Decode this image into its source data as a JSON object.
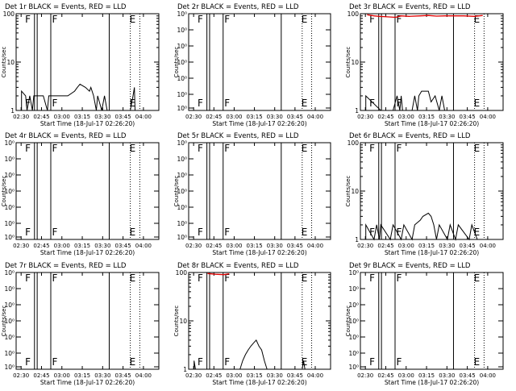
{
  "chart_data": [
    {
      "type": "line",
      "title": "Det 1r BLACK = Events, RED = LLD",
      "xlabel": "Start Time (18-Jul-17 02:26:20)",
      "ylabel": "Counts/sec",
      "y_scale": "log",
      "ylim": [
        1,
        100
      ],
      "y_ticks": [
        "1",
        "10",
        "100"
      ],
      "x_ticks": [
        "02:30",
        "02:45",
        "03:00",
        "03:15",
        "03:30",
        "03:45",
        "04:00"
      ],
      "x_range_minutes_after_0226": [
        0,
        105
      ],
      "markers": [
        {
          "type": "solid",
          "t": 13.5
        },
        {
          "type": "solid",
          "t": 15.5
        },
        {
          "type": "solid",
          "t": 25.5
        },
        {
          "type": "solid",
          "t": 68.5
        },
        {
          "type": "dotted",
          "t": 84
        },
        {
          "type": "dotted",
          "t": 91
        }
      ],
      "flags": [
        {
          "label": "F",
          "t": 6
        },
        {
          "label": "F",
          "t": 25.8
        },
        {
          "label": "E",
          "t": 84
        }
      ],
      "series": [
        {
          "color": "black",
          "points": [
            [
              4,
              1
            ],
            [
              4,
              2.5
            ],
            [
              7,
              2
            ],
            [
              8,
              1
            ],
            [
              10,
              2
            ],
            [
              12,
              1
            ],
            [
              13,
              2
            ],
            [
              15,
              2
            ],
            [
              20,
              2
            ],
            [
              23,
              1
            ],
            [
              24,
              2
            ],
            [
              30,
              2
            ],
            [
              38,
              2
            ],
            [
              43,
              2.5
            ],
            [
              45,
              3
            ],
            [
              47,
              3.5
            ],
            [
              51,
              3
            ],
            [
              54,
              2.5
            ],
            [
              55,
              3
            ],
            [
              57,
              2
            ],
            [
              59,
              1
            ],
            [
              60,
              2
            ],
            [
              63,
              1
            ],
            [
              65,
              2
            ],
            [
              67,
              1
            ],
            [
              84,
              1
            ],
            [
              86,
              2
            ],
            [
              87,
              3
            ],
            [
              87.5,
              1
            ]
          ]
        }
      ]
    },
    {
      "type": "line",
      "title": "Det 2r BLACK = Events, RED = LLD",
      "xlabel": "Start Time (18-Jul-17 02:26:20)",
      "ylabel": "Counts/sec",
      "y_scale": "log",
      "ylim": [
        0.9,
        1.00000001
      ],
      "y_ticks": [
        "10⁰",
        "10⁰",
        "10⁰",
        "10⁰",
        "10⁰",
        "10⁰",
        "10⁰"
      ],
      "x_ticks": [
        "02:30",
        "02:45",
        "03:00",
        "03:15",
        "03:30",
        "03:45",
        "04:00"
      ],
      "x_range_minutes_after_0226": [
        0,
        105
      ],
      "markers": [
        {
          "type": "solid",
          "t": 13.5
        },
        {
          "type": "solid",
          "t": 15.5
        },
        {
          "type": "solid",
          "t": 25.5
        },
        {
          "type": "solid",
          "t": 68.5
        },
        {
          "type": "dotted",
          "t": 84
        },
        {
          "type": "dotted",
          "t": 91
        }
      ],
      "flags": [
        {
          "label": "F",
          "t": 6
        },
        {
          "label": "F",
          "t": 25.8
        },
        {
          "label": "E",
          "t": 84
        }
      ],
      "series": []
    },
    {
      "type": "line",
      "title": "Det 3r BLACK = Events, RED = LLD",
      "xlabel": "Start Time (18-Jul-17 02:26:20)",
      "ylabel": "Counts/sec",
      "y_scale": "log",
      "ylim": [
        1,
        100
      ],
      "y_ticks": [
        "1",
        "10",
        "100"
      ],
      "x_ticks": [
        "02:30",
        "02:45",
        "03:00",
        "03:15",
        "03:30",
        "03:45",
        "04:00"
      ],
      "x_range_minutes_after_0226": [
        0,
        105
      ],
      "markers": [
        {
          "type": "solid",
          "t": 13.5
        },
        {
          "type": "solid",
          "t": 15.5
        },
        {
          "type": "solid",
          "t": 25.5
        },
        {
          "type": "solid",
          "t": 68.5
        },
        {
          "type": "dotted",
          "t": 84
        },
        {
          "type": "dotted",
          "t": 91
        }
      ],
      "flags": [
        {
          "label": "F",
          "t": 6
        },
        {
          "label": "F",
          "t": 25.8
        },
        {
          "label": "E",
          "t": 84
        }
      ],
      "series": [
        {
          "color": "black",
          "points": [
            [
              4,
              1
            ],
            [
              4,
              2
            ],
            [
              15,
              1
            ],
            [
              20,
              1
            ],
            [
              24,
              1
            ],
            [
              27,
              2
            ],
            [
              29,
              1
            ],
            [
              30,
              2
            ],
            [
              31,
              1
            ],
            [
              38,
              1
            ],
            [
              40,
              2
            ],
            [
              42,
              1
            ],
            [
              43,
              2
            ],
            [
              45,
              2.5
            ],
            [
              50,
              2.5
            ],
            [
              52,
              1.5
            ],
            [
              55,
              2
            ],
            [
              58,
              1
            ],
            [
              60,
              2
            ],
            [
              62,
              1
            ],
            [
              64,
              1
            ]
          ]
        },
        {
          "color": "red",
          "points": [
            [
              5,
              95
            ],
            [
              10,
              90
            ],
            [
              14,
              88
            ],
            [
              20,
              86
            ],
            [
              26,
              84
            ],
            [
              30,
              90
            ],
            [
              36,
              88
            ],
            [
              44,
              90
            ],
            [
              50,
              92
            ],
            [
              56,
              89
            ],
            [
              62,
              90
            ],
            [
              68,
              90
            ],
            [
              76,
              90
            ],
            [
              84,
              88
            ],
            [
              90,
              92
            ]
          ]
        }
      ]
    },
    {
      "type": "line",
      "title": "Det 4r BLACK = Events, RED = LLD",
      "xlabel": "Start Time (18-Jul-17 02:26:20)",
      "ylabel": "Counts/sec",
      "y_scale": "log",
      "ylim": [
        0.9,
        1.00000001
      ],
      "y_ticks": [
        "10⁰",
        "10⁰",
        "10⁰",
        "10⁰",
        "10⁰",
        "10⁰",
        "10⁰"
      ],
      "x_ticks": [
        "02:30",
        "02:45",
        "03:00",
        "03:15",
        "03:30",
        "03:45",
        "04:00"
      ],
      "x_range_minutes_after_0226": [
        0,
        105
      ],
      "markers": [
        {
          "type": "solid",
          "t": 13.5
        },
        {
          "type": "solid",
          "t": 15.5
        },
        {
          "type": "solid",
          "t": 25.5
        },
        {
          "type": "solid",
          "t": 68.5
        },
        {
          "type": "dotted",
          "t": 84
        },
        {
          "type": "dotted",
          "t": 91
        }
      ],
      "flags": [
        {
          "label": "F",
          "t": 6
        },
        {
          "label": "F",
          "t": 25.8
        },
        {
          "label": "E",
          "t": 84
        }
      ],
      "series": []
    },
    {
      "type": "line",
      "title": "Det 5r BLACK = Events, RED = LLD",
      "xlabel": "Start Time (18-Jul-17 02:26:20)",
      "ylabel": "Counts/sec",
      "y_scale": "log",
      "ylim": [
        0.9,
        1.00000001
      ],
      "y_ticks": [
        "10⁰",
        "10⁰",
        "10⁰",
        "10⁰",
        "10⁰",
        "10⁰",
        "10⁰"
      ],
      "x_ticks": [
        "02:30",
        "02:45",
        "03:00",
        "03:15",
        "03:30",
        "03:45",
        "04:00"
      ],
      "x_range_minutes_after_0226": [
        0,
        105
      ],
      "markers": [
        {
          "type": "solid",
          "t": 13.5
        },
        {
          "type": "solid",
          "t": 15.5
        },
        {
          "type": "solid",
          "t": 25.5
        },
        {
          "type": "solid",
          "t": 68.5
        },
        {
          "type": "dotted",
          "t": 84
        },
        {
          "type": "dotted",
          "t": 91
        }
      ],
      "flags": [
        {
          "label": "F",
          "t": 6
        },
        {
          "label": "F",
          "t": 25.8
        },
        {
          "label": "E",
          "t": 84
        }
      ],
      "series": []
    },
    {
      "type": "line",
      "title": "Det 6r BLACK = Events, RED = LLD",
      "xlabel": "Start Time (18-Jul-17 02:26:20)",
      "ylabel": "Counts/sec",
      "y_scale": "log",
      "ylim": [
        1,
        100
      ],
      "y_ticks": [
        "1",
        "10",
        "100"
      ],
      "x_ticks": [
        "02:30",
        "02:45",
        "03:00",
        "03:15",
        "03:30",
        "03:45",
        "04:00"
      ],
      "x_range_minutes_after_0226": [
        0,
        105
      ],
      "markers": [
        {
          "type": "solid",
          "t": 13.5
        },
        {
          "type": "solid",
          "t": 15.5
        },
        {
          "type": "solid",
          "t": 25.5
        },
        {
          "type": "solid",
          "t": 68.5
        },
        {
          "type": "dotted",
          "t": 84
        },
        {
          "type": "dotted",
          "t": 91
        }
      ],
      "flags": [
        {
          "label": "F",
          "t": 6
        },
        {
          "label": "F",
          "t": 25.8
        },
        {
          "label": "E",
          "t": 84
        }
      ],
      "series": [
        {
          "color": "black",
          "points": [
            [
              4,
              1
            ],
            [
              4,
              2
            ],
            [
              10,
              1
            ],
            [
              12,
              2
            ],
            [
              14,
              1
            ],
            [
              15,
              2
            ],
            [
              22,
              1
            ],
            [
              24,
              2
            ],
            [
              30,
              1
            ],
            [
              32,
              2
            ],
            [
              38,
              1
            ],
            [
              40,
              2
            ],
            [
              44,
              2.5
            ],
            [
              46,
              3
            ],
            [
              50,
              3.5
            ],
            [
              52,
              3
            ],
            [
              54,
              2
            ],
            [
              56,
              1
            ],
            [
              58,
              2
            ],
            [
              64,
              1
            ],
            [
              66,
              2
            ],
            [
              70,
              1
            ],
            [
              72,
              2
            ],
            [
              80,
              1
            ],
            [
              82,
              2
            ],
            [
              86,
              1
            ]
          ]
        }
      ]
    },
    {
      "type": "line",
      "title": "Det 7r BLACK = Events, RED = LLD",
      "xlabel": "Start Time (18-Jul-17 02:26:20)",
      "ylabel": "Counts/sec",
      "y_scale": "log",
      "ylim": [
        0.9,
        1.00000001
      ],
      "y_ticks": [
        "10⁰",
        "10⁰",
        "10⁰",
        "10⁰",
        "10⁰",
        "10⁰",
        "10⁰"
      ],
      "x_ticks": [
        "02:30",
        "02:45",
        "03:00",
        "03:15",
        "03:30",
        "03:45",
        "04:00"
      ],
      "x_range_minutes_after_0226": [
        0,
        105
      ],
      "markers": [
        {
          "type": "solid",
          "t": 13.5
        },
        {
          "type": "solid",
          "t": 15.5
        },
        {
          "type": "solid",
          "t": 25.5
        },
        {
          "type": "solid",
          "t": 68.5
        },
        {
          "type": "dotted",
          "t": 84
        },
        {
          "type": "dotted",
          "t": 91
        }
      ],
      "flags": [
        {
          "label": "F",
          "t": 6
        },
        {
          "label": "F",
          "t": 25.8
        },
        {
          "label": "E",
          "t": 84
        }
      ],
      "series": []
    },
    {
      "type": "line",
      "title": "Det 8r BLACK = Events, RED = LLD",
      "xlabel": "Start Time (18-Jul-17 02:26:20)",
      "ylabel": "Counts/sec",
      "y_scale": "log",
      "ylim": [
        1,
        100
      ],
      "y_ticks": [
        "1",
        "10",
        "100"
      ],
      "x_ticks": [
        "02:30",
        "02:45",
        "03:00",
        "03:15",
        "03:30",
        "03:45",
        "04:00"
      ],
      "x_range_minutes_after_0226": [
        0,
        105
      ],
      "markers": [
        {
          "type": "solid",
          "t": 13.5
        },
        {
          "type": "solid",
          "t": 15.5
        },
        {
          "type": "solid",
          "t": 25.5
        },
        {
          "type": "solid",
          "t": 68.5
        },
        {
          "type": "dotted",
          "t": 84
        },
        {
          "type": "dotted",
          "t": 91
        }
      ],
      "flags": [
        {
          "label": "F",
          "t": 6
        },
        {
          "label": "F",
          "t": 25.8
        },
        {
          "label": "E",
          "t": 84
        }
      ],
      "series": [
        {
          "color": "black",
          "points": [
            [
              4,
              1
            ],
            [
              4,
              1.5
            ],
            [
              5,
              1
            ],
            [
              38,
              1
            ],
            [
              40,
              1.5
            ],
            [
              42,
              2
            ],
            [
              44,
              2.5
            ],
            [
              46,
              3
            ],
            [
              48,
              3.5
            ],
            [
              50,
              4
            ],
            [
              52,
              3
            ],
            [
              54,
              2.5
            ],
            [
              56,
              1.5
            ],
            [
              58,
              1
            ],
            [
              84,
              1
            ],
            [
              85,
              1.5
            ],
            [
              86,
              1
            ]
          ]
        },
        {
          "color": "red",
          "points": [
            [
              14,
              95
            ],
            [
              20,
              92
            ],
            [
              26,
              90
            ],
            [
              30,
              94
            ]
          ]
        }
      ]
    },
    {
      "type": "line",
      "title": "Det 9r BLACK = Events, RED = LLD",
      "xlabel": "Start Time (18-Jul-17 02:26:20)",
      "ylabel": "Counts/sec",
      "y_scale": "log",
      "ylim": [
        0.9,
        1.00000001
      ],
      "y_ticks": [
        "10⁰",
        "10⁰",
        "10⁰",
        "10⁰",
        "10⁰",
        "10⁰",
        "10⁰"
      ],
      "x_ticks": [
        "02:30",
        "02:45",
        "03:00",
        "03:15",
        "03:30",
        "03:45",
        "04:00"
      ],
      "x_range_minutes_after_0226": [
        0,
        105
      ],
      "markers": [
        {
          "type": "solid",
          "t": 13.5
        },
        {
          "type": "solid",
          "t": 15.5
        },
        {
          "type": "solid",
          "t": 25.5
        },
        {
          "type": "solid",
          "t": 68.5
        },
        {
          "type": "dotted",
          "t": 84
        },
        {
          "type": "dotted",
          "t": 91
        }
      ],
      "flags": [
        {
          "label": "F",
          "t": 6
        },
        {
          "label": "F",
          "t": 25.8
        },
        {
          "label": "E",
          "t": 84
        }
      ],
      "series": []
    }
  ]
}
